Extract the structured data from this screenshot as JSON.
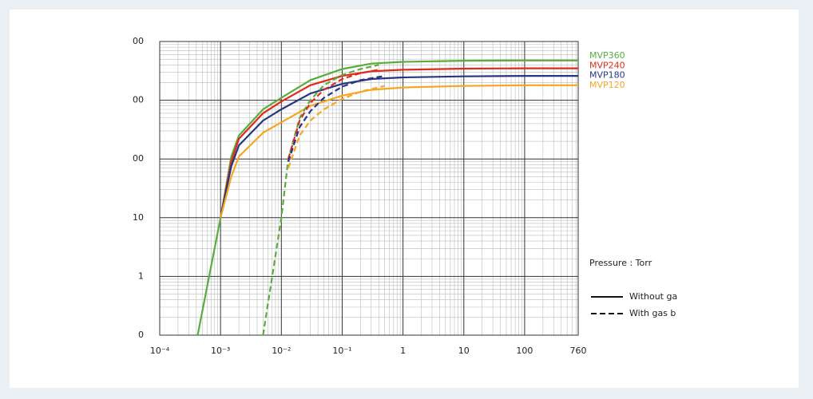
{
  "chart_data": {
    "type": "line",
    "log_x": true,
    "log_y": true,
    "grid": true,
    "x_axis_label": "Pressure : Torr",
    "xlim": [
      0.0001,
      760
    ],
    "ylim": [
      0.1,
      10000
    ],
    "xticks": [
      {
        "value": 0.0001,
        "label": "10⁻⁴"
      },
      {
        "value": 0.001,
        "label": "10⁻³"
      },
      {
        "value": 0.01,
        "label": "10⁻²"
      },
      {
        "value": 0.1,
        "label": "10⁻¹"
      },
      1,
      10,
      100,
      760
    ],
    "yticks": [
      {
        "value": 0.1,
        "label": "0"
      },
      1,
      10,
      {
        "value": 100,
        "label": "00"
      },
      {
        "value": 1000,
        "label": "00"
      },
      {
        "value": 10000,
        "label": "00"
      }
    ],
    "line_styles": [
      {
        "label": "Without ga",
        "dash": false
      },
      {
        "label": "With gas b",
        "dash": true
      }
    ],
    "series": [
      {
        "name": "MVP360",
        "color": "#5aac3c",
        "dash": false,
        "x": [
          0.00042,
          0.001,
          0.0015,
          0.002,
          0.005,
          0.01,
          0.03,
          0.1,
          0.3,
          1,
          10,
          100,
          760
        ],
        "values": [
          0.1,
          10,
          110,
          250,
          700,
          1100,
          2200,
          3400,
          4200,
          4500,
          4700,
          4750,
          4750
        ]
      },
      {
        "name": "MVP240",
        "color": "#e02a1d",
        "dash": false,
        "x": [
          0.001,
          0.0015,
          0.002,
          0.005,
          0.01,
          0.03,
          0.1,
          0.3,
          1,
          10,
          100,
          760
        ],
        "values": [
          10,
          90,
          220,
          600,
          950,
          1800,
          2600,
          3100,
          3300,
          3450,
          3500,
          3500
        ]
      },
      {
        "name": "MVP180",
        "color": "#283583",
        "dash": false,
        "x": [
          0.001,
          0.0015,
          0.002,
          0.005,
          0.01,
          0.03,
          0.1,
          0.3,
          1,
          10,
          100,
          760
        ],
        "values": [
          10,
          75,
          170,
          450,
          700,
          1300,
          1900,
          2300,
          2450,
          2550,
          2600,
          2600
        ]
      },
      {
        "name": "MVP120",
        "color": "#f5a623",
        "dash": false,
        "x": [
          0.001,
          0.0015,
          0.002,
          0.005,
          0.01,
          0.03,
          0.1,
          0.3,
          1,
          10,
          100,
          760
        ],
        "values": [
          10,
          50,
          110,
          280,
          420,
          800,
          1200,
          1500,
          1650,
          1750,
          1800,
          1800
        ]
      },
      {
        "color": "#5aac3c",
        "dash": true,
        "x": [
          0.005,
          0.01,
          0.013,
          0.02,
          0.03,
          0.05,
          0.1,
          0.2,
          0.4
        ],
        "values": [
          0.1,
          10,
          100,
          500,
          1000,
          1800,
          2700,
          3400,
          4000
        ]
      },
      {
        "color": "#e02a1d",
        "dash": true,
        "x": [
          0.013,
          0.02,
          0.03,
          0.05,
          0.1,
          0.2,
          0.4
        ],
        "values": [
          100,
          450,
          900,
          1500,
          2300,
          2900,
          3300
        ]
      },
      {
        "color": "#283583",
        "dash": true,
        "x": [
          0.013,
          0.02,
          0.03,
          0.05,
          0.1,
          0.2,
          0.5
        ],
        "values": [
          90,
          350,
          650,
          1100,
          1700,
          2200,
          2600
        ]
      },
      {
        "color": "#f5a623",
        "dash": true,
        "x": [
          0.013,
          0.02,
          0.03,
          0.05,
          0.1,
          0.2,
          0.5
        ],
        "values": [
          70,
          250,
          450,
          700,
          1050,
          1400,
          1750
        ]
      }
    ]
  }
}
